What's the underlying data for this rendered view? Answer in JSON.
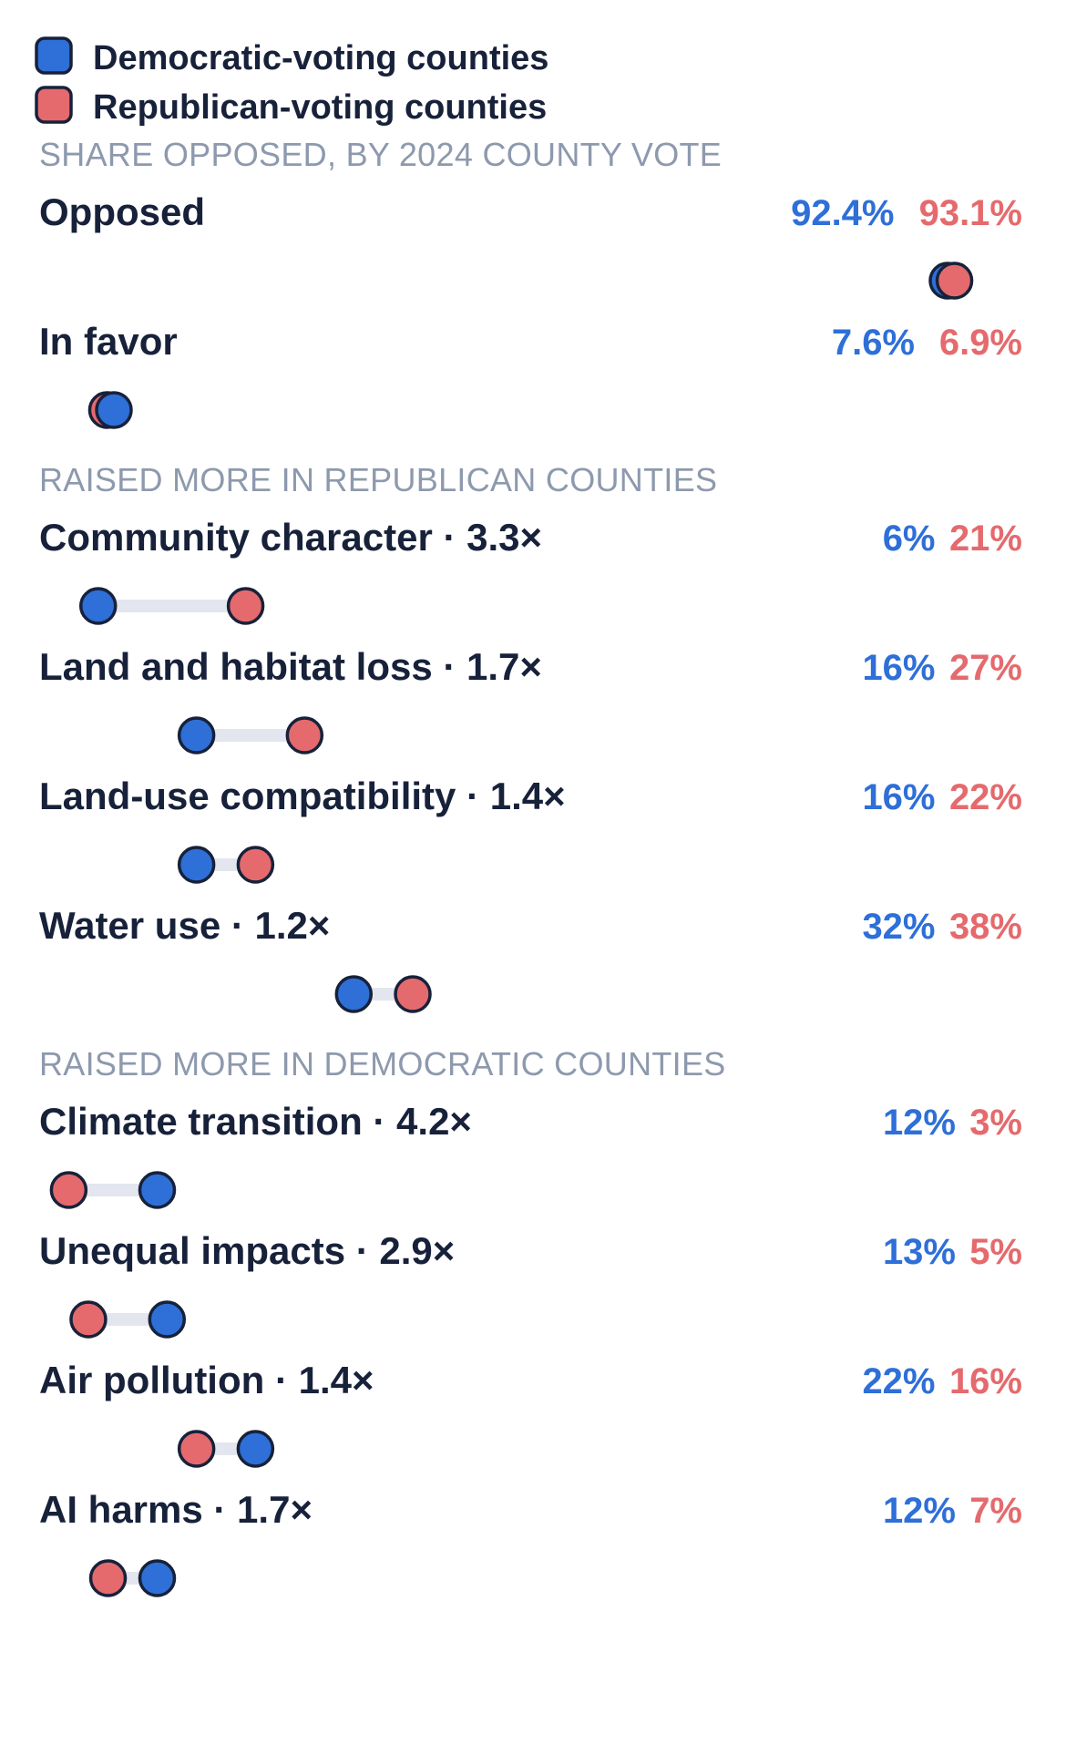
{
  "chart_data": {
    "type": "dumbbell",
    "colors": {
      "democratic": "#2e6fd8",
      "republican": "#e56a6d"
    },
    "legend": [
      {
        "key": "democratic",
        "label": "Democratic-voting counties"
      },
      {
        "key": "republican",
        "label": "Republican-voting counties"
      }
    ],
    "x_range": [
      0,
      100
    ],
    "sections": [
      {
        "title": "SHARE OPPOSED, BY 2024 COUNTY VOTE",
        "scale_max": 100,
        "rows": [
          {
            "label": "Opposed",
            "dem": 92.4,
            "rep": 93.1,
            "dem_text": "92.4%",
            "rep_text": "93.1%"
          },
          {
            "label": "In favor",
            "dem": 7.6,
            "rep": 6.9,
            "dem_text": "7.6%",
            "rep_text": "6.9%"
          }
        ]
      },
      {
        "title": "RAISED MORE IN REPUBLICAN COUNTIES",
        "scale_max": 100,
        "rows": [
          {
            "label": "Community character · 3.3×",
            "dem": 6,
            "rep": 21,
            "dem_text": "6%",
            "rep_text": "21%"
          },
          {
            "label": "Land and habitat loss · 1.7×",
            "dem": 16,
            "rep": 27,
            "dem_text": "16%",
            "rep_text": "27%"
          },
          {
            "label": "Land-use compatibility · 1.4×",
            "dem": 16,
            "rep": 22,
            "dem_text": "16%",
            "rep_text": "22%"
          },
          {
            "label": "Water use · 1.2×",
            "dem": 32,
            "rep": 38,
            "dem_text": "32%",
            "rep_text": "38%"
          }
        ]
      },
      {
        "title": "RAISED MORE IN DEMOCRATIC COUNTIES",
        "scale_max": 100,
        "rows": [
          {
            "label": "Climate transition · 4.2×",
            "dem": 12,
            "rep": 3,
            "dem_text": "12%",
            "rep_text": "3%"
          },
          {
            "label": "Unequal impacts · 2.9×",
            "dem": 13,
            "rep": 5,
            "dem_text": "13%",
            "rep_text": "5%"
          },
          {
            "label": "Air pollution · 1.4×",
            "dem": 22,
            "rep": 16,
            "dem_text": "22%",
            "rep_text": "16%"
          },
          {
            "label": "AI harms · 1.7×",
            "dem": 12,
            "rep": 7,
            "dem_text": "12%",
            "rep_text": "7%"
          }
        ]
      }
    ]
  }
}
